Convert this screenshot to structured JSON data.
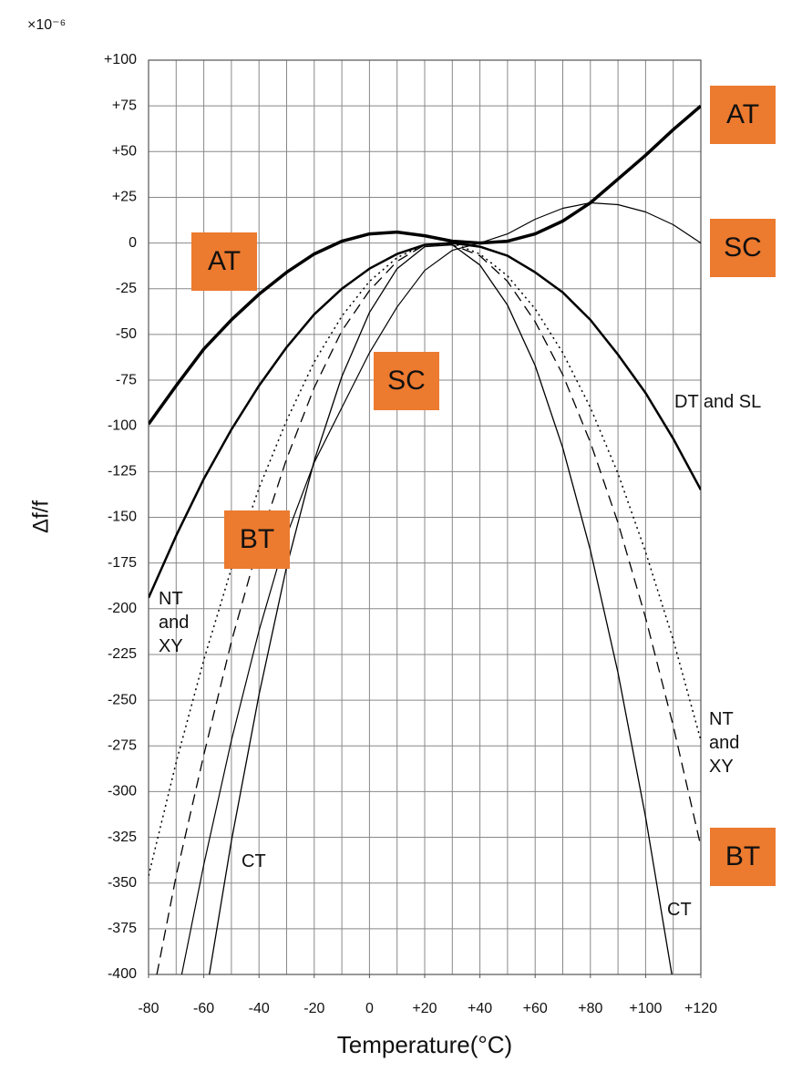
{
  "chart_data": {
    "type": "line",
    "y_unit": "×10⁻⁶",
    "ylabel": "Δf/f",
    "xlabel": "Temperature(°C)",
    "xlim": [
      -80,
      120
    ],
    "ylim": [
      -400,
      100
    ],
    "xticks": [
      -80,
      -60,
      -40,
      -20,
      0,
      {
        "value": 20,
        "label": "+20"
      },
      {
        "value": 40,
        "label": "+40"
      },
      {
        "value": 60,
        "label": "+60"
      },
      {
        "value": 80,
        "label": "+80"
      },
      {
        "value": 100,
        "label": "+100"
      },
      {
        "value": 120,
        "label": "+120"
      }
    ],
    "yticks": [
      {
        "value": 100,
        "label": "+100"
      },
      {
        "value": 75,
        "label": "+75"
      },
      {
        "value": 50,
        "label": "+50"
      },
      {
        "value": 25,
        "label": "+25"
      },
      0,
      -25,
      -50,
      -75,
      -100,
      -125,
      -150,
      -175,
      -200,
      -225,
      -250,
      -275,
      -300,
      -325,
      -350,
      -375,
      -400
    ],
    "xgrid": [
      -80,
      -70,
      -60,
      -50,
      -40,
      -30,
      -20,
      -10,
      0,
      10,
      20,
      30,
      40,
      50,
      60,
      70,
      80,
      90,
      100,
      110,
      120
    ],
    "grid": true,
    "series": [
      {
        "name": "AT",
        "color": "#000000",
        "width": 3.5,
        "dash": "solid",
        "x": [
          -80,
          -70,
          -60,
          -50,
          -40,
          -30,
          -20,
          -10,
          0,
          10,
          20,
          30,
          40,
          50,
          60,
          70,
          80,
          90,
          100,
          110,
          120
        ],
        "values": [
          -99,
          -78,
          -58,
          -42,
          -28,
          -16,
          -6,
          1,
          5,
          6,
          4,
          1,
          0,
          1,
          5,
          12,
          22,
          35,
          48,
          62,
          75
        ]
      },
      {
        "name": "SC",
        "color": "#000000",
        "width": 1.2,
        "dash": "solid",
        "x": [
          -68,
          -60,
          -50,
          -40,
          -30,
          -20,
          -10,
          0,
          10,
          20,
          30,
          40,
          50,
          60,
          70,
          80,
          90,
          100,
          110,
          120
        ],
        "values": [
          -400,
          -340,
          -272,
          -212,
          -160,
          -120,
          -90,
          -60,
          -35,
          -15,
          -4,
          0,
          5,
          13,
          19,
          22,
          21,
          17,
          10,
          0
        ]
      },
      {
        "name": "DT and SL",
        "color": "#000000",
        "width": 2.5,
        "dash": "solid",
        "x": [
          -80,
          -70,
          -60,
          -50,
          -40,
          -30,
          -20,
          -10,
          0,
          10,
          20,
          30,
          40,
          50,
          60,
          70,
          80,
          90,
          100,
          110,
          120
        ],
        "values": [
          -194,
          -160,
          -129,
          -102,
          -78,
          -57,
          -39,
          -25,
          -14,
          -6,
          -1,
          0,
          -2,
          -7,
          -16,
          -27,
          -42,
          -61,
          -82,
          -107,
          -135
        ]
      },
      {
        "name": "NT and XY",
        "color": "#000000",
        "width": 1.5,
        "dash": "dotted",
        "x": [
          -80,
          -70,
          -60,
          -50,
          -40,
          -30,
          -20,
          -10,
          0,
          10,
          20,
          30,
          40,
          50,
          60,
          70,
          80,
          90,
          100,
          110,
          120
        ],
        "values": [
          -346,
          -284,
          -228,
          -178,
          -134,
          -97,
          -65,
          -40,
          -21,
          -8,
          -1,
          0,
          -6,
          -18,
          -36,
          -60,
          -90,
          -126,
          -169,
          -217,
          -272
        ]
      },
      {
        "name": "BT",
        "color": "#000000",
        "width": 1.3,
        "dash": "dashed",
        "x": [
          -77,
          -70,
          -60,
          -50,
          -40,
          -30,
          -20,
          -10,
          0,
          10,
          20,
          30,
          40,
          50,
          60,
          70,
          80,
          90,
          100,
          110,
          120
        ],
        "values": [
          -400,
          -346,
          -280,
          -218,
          -164,
          -118,
          -79,
          -48,
          -26,
          -10,
          -1,
          -1,
          -7,
          -21,
          -43,
          -72,
          -109,
          -153,
          -205,
          -264,
          -330
        ]
      },
      {
        "name": "CT",
        "color": "#000000",
        "width": 1.3,
        "dash": "solid",
        "x": [
          -58,
          -50,
          -40,
          -30,
          -20,
          -10,
          0,
          10,
          20,
          30,
          40,
          50,
          60,
          70,
          80,
          90,
          100,
          109.5
        ],
        "values": [
          -400,
          -327,
          -247,
          -177,
          -119,
          -73,
          -38,
          -14,
          -2,
          -1,
          -12,
          -34,
          -67,
          -112,
          -168,
          -235,
          -314,
          -400
        ]
      }
    ]
  }
}
